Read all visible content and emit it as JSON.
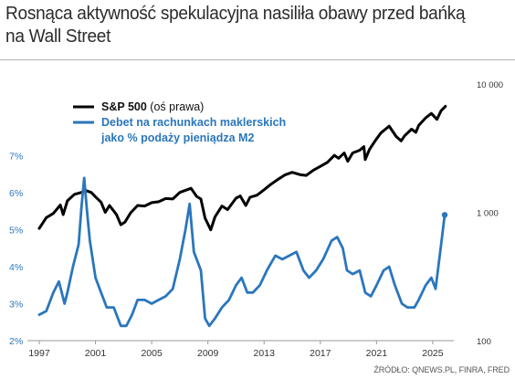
{
  "title": "Rosnąca aktywność spekulacyjna nasiliła obawy przed bańką na Wall Street",
  "source": "ŹRÓDŁO: QNEWS.PL, FINRA, FRED",
  "colors": {
    "sp500": "#000000",
    "debit": "#2a76bd",
    "left_axis": "#2a76bd",
    "right_axis": "#333333"
  },
  "chart_data": {
    "type": "line",
    "x_range": [
      1997,
      2026.5
    ],
    "x_ticks": [
      "1997",
      "2001",
      "2005",
      "2009",
      "2013",
      "2017",
      "2021",
      "2025"
    ],
    "y_left": {
      "ticks": [
        "2%",
        "3%",
        "4%",
        "5%",
        "6%",
        "7%"
      ],
      "range": [
        2,
        7.5
      ]
    },
    "y_right": {
      "scale": "log",
      "ticks": [
        "100",
        "1 000",
        "10 000"
      ],
      "range": [
        100,
        10000
      ]
    },
    "legend_position": "top-left",
    "series": [
      {
        "name": "S&P 500 (oś prawa)",
        "axis": "right",
        "points": [
          [
            1997.0,
            750
          ],
          [
            1997.5,
            910
          ],
          [
            1998.0,
            980
          ],
          [
            1998.5,
            1140
          ],
          [
            1998.7,
            960
          ],
          [
            1999.0,
            1230
          ],
          [
            1999.5,
            1380
          ],
          [
            2000.0,
            1430
          ],
          [
            2000.3,
            1480
          ],
          [
            2000.7,
            1430
          ],
          [
            2001.0,
            1320
          ],
          [
            2001.4,
            1200
          ],
          [
            2001.7,
            1000
          ],
          [
            2002.0,
            1130
          ],
          [
            2002.5,
            960
          ],
          [
            2002.8,
            800
          ],
          [
            2003.1,
            840
          ],
          [
            2003.5,
            990
          ],
          [
            2004.0,
            1130
          ],
          [
            2004.5,
            1120
          ],
          [
            2005.0,
            1190
          ],
          [
            2005.5,
            1210
          ],
          [
            2006.0,
            1280
          ],
          [
            2006.5,
            1270
          ],
          [
            2007.0,
            1430
          ],
          [
            2007.8,
            1540
          ],
          [
            2008.2,
            1330
          ],
          [
            2008.5,
            1270
          ],
          [
            2008.8,
            900
          ],
          [
            2009.2,
            730
          ],
          [
            2009.5,
            920
          ],
          [
            2010.0,
            1120
          ],
          [
            2010.4,
            1050
          ],
          [
            2011.0,
            1290
          ],
          [
            2011.3,
            1340
          ],
          [
            2011.7,
            1130
          ],
          [
            2012.0,
            1310
          ],
          [
            2012.5,
            1360
          ],
          [
            2013.0,
            1500
          ],
          [
            2013.5,
            1660
          ],
          [
            2014.0,
            1810
          ],
          [
            2014.5,
            1960
          ],
          [
            2015.0,
            2050
          ],
          [
            2015.6,
            1960
          ],
          [
            2016.0,
            1940
          ],
          [
            2016.5,
            2130
          ],
          [
            2017.0,
            2280
          ],
          [
            2017.5,
            2450
          ],
          [
            2018.0,
            2780
          ],
          [
            2018.3,
            2640
          ],
          [
            2018.7,
            2900
          ],
          [
            2018.95,
            2500
          ],
          [
            2019.3,
            2900
          ],
          [
            2019.8,
            3050
          ],
          [
            2020.1,
            3250
          ],
          [
            2020.2,
            2580
          ],
          [
            2020.5,
            3100
          ],
          [
            2020.9,
            3600
          ],
          [
            2021.3,
            4150
          ],
          [
            2021.9,
            4700
          ],
          [
            2022.4,
            3900
          ],
          [
            2022.75,
            3600
          ],
          [
            2023.0,
            3950
          ],
          [
            2023.5,
            4450
          ],
          [
            2023.8,
            4200
          ],
          [
            2024.0,
            4750
          ],
          [
            2024.5,
            5450
          ],
          [
            2024.9,
            5900
          ],
          [
            2025.3,
            5300
          ],
          [
            2025.6,
            6200
          ],
          [
            2025.9,
            6700
          ]
        ]
      },
      {
        "name": "Debet na rachunkach maklerskich jako % podaży pieniądza M2",
        "axis": "left",
        "points": [
          [
            1997.0,
            2.7
          ],
          [
            1997.5,
            2.8
          ],
          [
            1998.0,
            3.3
          ],
          [
            1998.4,
            3.6
          ],
          [
            1998.8,
            3.0
          ],
          [
            1999.0,
            3.3
          ],
          [
            1999.4,
            4.0
          ],
          [
            1999.8,
            4.6
          ],
          [
            2000.0,
            5.6
          ],
          [
            2000.2,
            6.4
          ],
          [
            2000.4,
            5.5
          ],
          [
            2000.6,
            4.7
          ],
          [
            2001.0,
            3.7
          ],
          [
            2001.4,
            3.3
          ],
          [
            2001.8,
            2.9
          ],
          [
            2002.3,
            2.9
          ],
          [
            2002.8,
            2.4
          ],
          [
            2003.2,
            2.4
          ],
          [
            2003.6,
            2.7
          ],
          [
            2004.0,
            3.1
          ],
          [
            2004.5,
            3.1
          ],
          [
            2005.0,
            3.0
          ],
          [
            2005.5,
            3.1
          ],
          [
            2006.0,
            3.2
          ],
          [
            2006.5,
            3.4
          ],
          [
            2007.0,
            4.2
          ],
          [
            2007.4,
            5.0
          ],
          [
            2007.7,
            5.7
          ],
          [
            2008.0,
            4.4
          ],
          [
            2008.5,
            3.9
          ],
          [
            2008.8,
            2.6
          ],
          [
            2009.1,
            2.4
          ],
          [
            2009.5,
            2.6
          ],
          [
            2010.0,
            2.9
          ],
          [
            2010.5,
            3.1
          ],
          [
            2011.0,
            3.5
          ],
          [
            2011.4,
            3.7
          ],
          [
            2011.8,
            3.3
          ],
          [
            2012.2,
            3.3
          ],
          [
            2012.7,
            3.5
          ],
          [
            2013.2,
            3.9
          ],
          [
            2013.8,
            4.3
          ],
          [
            2014.3,
            4.2
          ],
          [
            2014.8,
            4.3
          ],
          [
            2015.3,
            4.4
          ],
          [
            2015.8,
            3.9
          ],
          [
            2016.2,
            3.7
          ],
          [
            2016.7,
            3.9
          ],
          [
            2017.2,
            4.2
          ],
          [
            2017.8,
            4.7
          ],
          [
            2018.2,
            4.8
          ],
          [
            2018.6,
            4.5
          ],
          [
            2018.9,
            3.9
          ],
          [
            2019.3,
            3.8
          ],
          [
            2019.8,
            3.9
          ],
          [
            2020.2,
            3.3
          ],
          [
            2020.6,
            3.2
          ],
          [
            2021.0,
            3.5
          ],
          [
            2021.5,
            3.9
          ],
          [
            2021.9,
            4.0
          ],
          [
            2022.3,
            3.5
          ],
          [
            2022.8,
            3.0
          ],
          [
            2023.2,
            2.9
          ],
          [
            2023.7,
            2.9
          ],
          [
            2024.0,
            3.1
          ],
          [
            2024.5,
            3.5
          ],
          [
            2024.9,
            3.7
          ],
          [
            2025.2,
            3.4
          ],
          [
            2025.6,
            4.6
          ],
          [
            2025.85,
            5.4
          ]
        ]
      }
    ]
  }
}
